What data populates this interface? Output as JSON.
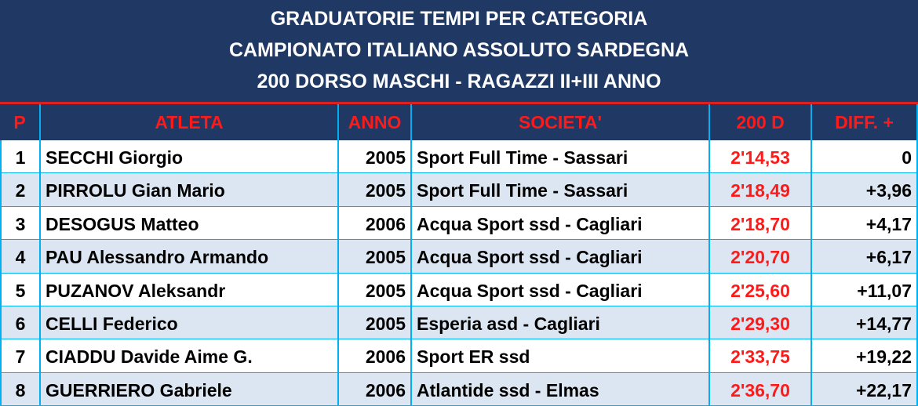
{
  "header": {
    "lines": [
      "GRADUATORIE TEMPI PER CATEGORIA",
      "CAMPIONATO ITALIANO ASSOLUTO SARDEGNA",
      "200 DORSO MASCHI - RAGAZZI II+III ANNO"
    ]
  },
  "table": {
    "columns": [
      "P",
      "ATLETA",
      "ANNO",
      "SOCIETA'",
      "200 D",
      "DIFF. +"
    ],
    "rows": [
      [
        "1",
        "SECCHI Giorgio",
        "2005",
        "Sport Full Time - Sassari",
        "2'14,53",
        "0"
      ],
      [
        "2",
        "PIRROLU Gian Mario",
        "2005",
        "Sport Full Time - Sassari",
        "2'18,49",
        "+3,96"
      ],
      [
        "3",
        "DESOGUS Matteo",
        "2006",
        "Acqua Sport ssd - Cagliari",
        "2'18,70",
        "+4,17"
      ],
      [
        "4",
        "PAU Alessandro Armando",
        "2005",
        "Acqua Sport ssd - Cagliari",
        "2'20,70",
        "+6,17"
      ],
      [
        "5",
        "PUZANOV Aleksandr",
        "2005",
        "Acqua Sport ssd - Cagliari",
        "2'25,60",
        "+11,07"
      ],
      [
        "6",
        "CELLI Federico",
        "2005",
        "Esperia asd - Cagliari",
        "2'29,30",
        "+14,77"
      ],
      [
        "7",
        "CIADDU Davide Aime G.",
        "2006",
        "Sport ER ssd",
        "2'33,75",
        "+19,22"
      ],
      [
        "8",
        "GUERRIERO Gabriele",
        "2006",
        "Atlantide ssd - Elmas",
        "2'36,70",
        "+22,17"
      ]
    ]
  }
}
